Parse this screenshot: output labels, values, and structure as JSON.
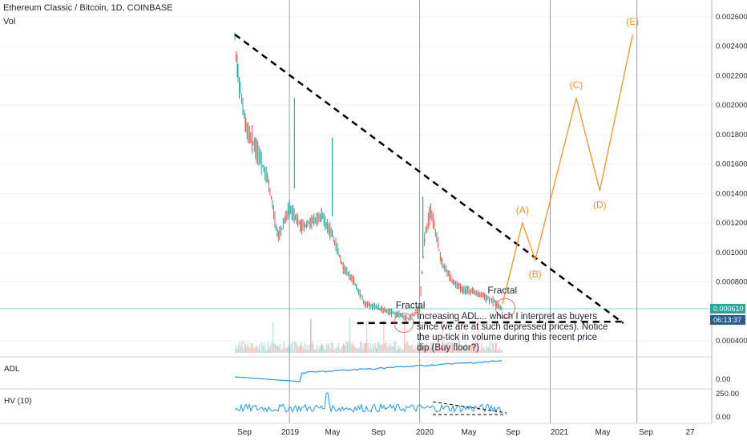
{
  "header": {
    "symbol_line": "Ethereum Classic / Bitcoin, 1D, COINBASE",
    "volume_label": "Vol"
  },
  "panes": {
    "adl_label": "ADL",
    "hv_label": "HV (10)"
  },
  "price_tags": {
    "last_price": "0.000610",
    "countdown": "06:13:37"
  },
  "colors": {
    "up": "#26a69a",
    "down": "#ef5350",
    "projection": "#f7931e",
    "adl_line": "#2196f3",
    "last_price_tag": "#26a69a",
    "countdown_tag": "#2a5b8c",
    "vertical_markers": "#9b9b9b",
    "trendline": "#000000",
    "fractal_circle": "#e57373"
  },
  "chart_data": {
    "type": "line",
    "title": "Ethereum Classic / Bitcoin, 1D, COINBASE",
    "ylim": [
      0.0003,
      0.0027
    ],
    "y_ticks": [
      "0.002600",
      "0.002400",
      "0.002200",
      "0.002000",
      "0.001800",
      "0.001600",
      "0.001400",
      "0.001200",
      "0.001000",
      "0.000800",
      "0.000400"
    ],
    "adl_ticks": [
      "0.00"
    ],
    "hv_ticks": [
      "250.00",
      "0.00"
    ],
    "x_ticks": [
      "Sep",
      "2019",
      "May",
      "Sep",
      "2020",
      "May",
      "Sep",
      "2021",
      "May",
      "Sep",
      "27"
    ],
    "price_series": {
      "name": "ETC/BTC",
      "x": [
        "2018-08-01",
        "2018-08-10",
        "2018-09-01",
        "2018-10-01",
        "2018-11-01",
        "2018-12-01",
        "2019-01-01",
        "2019-02-01",
        "2019-03-01",
        "2019-04-01",
        "2019-05-01",
        "2019-06-01",
        "2019-07-01",
        "2019-08-01",
        "2019-09-01",
        "2019-10-01",
        "2019-11-01",
        "2019-12-01",
        "2020-01-01",
        "2020-01-15",
        "2020-02-01",
        "2020-03-01",
        "2020-04-01",
        "2020-05-01",
        "2020-06-01",
        "2020-07-01",
        "2020-08-01",
        "2020-08-20"
      ],
      "values": [
        0.00245,
        0.0022,
        0.00185,
        0.0017,
        0.0015,
        0.0011,
        0.0013,
        0.00118,
        0.0012,
        0.00125,
        0.00112,
        0.0009,
        0.0008,
        0.00065,
        0.00063,
        0.0006,
        0.00058,
        0.00055,
        0.00062,
        0.0011,
        0.0013,
        0.00095,
        0.0008,
        0.00075,
        0.00073,
        0.0007,
        0.00066,
        0.00061
      ]
    },
    "projection": {
      "name": "",
      "points": [
        {
          "label": "",
          "x": "2020-08-20",
          "y": 0.00065
        },
        {
          "label": "(A)",
          "x": "2020-10-15",
          "y": 0.0012
        },
        {
          "label": "(B)",
          "x": "2020-11-20",
          "y": 0.00095
        },
        {
          "label": "(C)",
          "x": "2021-03-15",
          "y": 0.00205
        },
        {
          "label": "(D)",
          "x": "2021-05-20",
          "y": 0.00142
        },
        {
          "label": "(E)",
          "x": "2021-08-20",
          "y": 0.00248
        }
      ]
    },
    "trendlines": [
      {
        "x1": "2018-08-01",
        "y1": 0.00248,
        "x2": "2021-07-25",
        "y2": 0.00052
      },
      {
        "x1": "2019-07-10",
        "y1": 0.00052,
        "x2": "2021-07-25",
        "y2": 0.00053
      }
    ],
    "annotations": [
      {
        "text": "Fractal",
        "x": "2019-12-10",
        "y": 0.00062
      },
      {
        "text": "Fractal",
        "x": "2020-08-10",
        "y": 0.00072
      },
      {
        "text": "Increasing ADL... which I interpret as buyers since we are at such depressed prices). Notice the up-tick in volume during this recent price dip (Buy floor?)",
        "x": "2019-12-20",
        "y": 0.00058
      }
    ]
  }
}
